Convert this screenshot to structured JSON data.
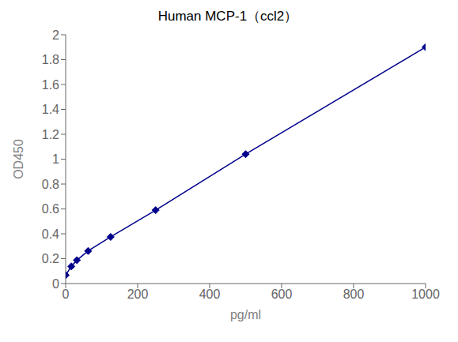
{
  "chart_data": {
    "type": "line",
    "title": "Human MCP-1（ccl2）",
    "xlabel": "pg/ml",
    "ylabel": "OD450",
    "x": [
      0,
      15.6,
      31.25,
      62.5,
      125,
      250,
      500,
      1000
    ],
    "values": [
      0.068,
      0.138,
      0.188,
      0.262,
      0.375,
      0.59,
      1.04,
      1.9
    ],
    "color": "#00008B",
    "marker": "diamond",
    "xlim": [
      0,
      1000
    ],
    "ylim": [
      0,
      2.0
    ],
    "xticks": [
      0,
      200,
      400,
      600,
      800,
      1000
    ],
    "yticks": [
      0,
      0.2,
      0.4,
      0.6,
      0.8,
      1.0,
      1.2,
      1.4,
      1.6,
      1.8,
      2.0
    ],
    "grid": false
  }
}
